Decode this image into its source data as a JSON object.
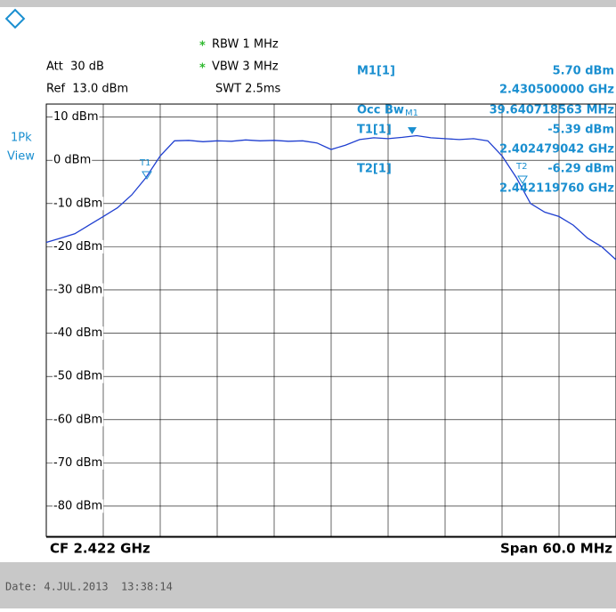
{
  "settings": {
    "rbw": "RBW 1 MHz",
    "vbw": "VBW 3 MHz",
    "swt": "SWT 2.5ms",
    "att": "Att  30 dB",
    "ref": "Ref  13.0 dBm",
    "star": "*"
  },
  "view": {
    "mode": "1Pk",
    "state": "View"
  },
  "markers": {
    "m1": {
      "name": "M1[1]",
      "level": "5.70 dBm",
      "freq": "2.430500000 GHz"
    },
    "occ": {
      "name": "Occ Bw",
      "value": "39.640718563 MHz"
    },
    "t1": {
      "name": "T1[1]",
      "level": "-5.39 dBm",
      "freq": "2.402479042 GHz"
    },
    "t2": {
      "name": "T2[1]",
      "level": "-6.29 dBm",
      "freq": "2.442119760 GHz"
    },
    "tags": [
      "M1",
      "T1",
      "T2"
    ]
  },
  "y_labels": [
    "10 dBm",
    "0 dBm",
    "-10 dBm",
    "-20 dBm",
    "-30 dBm",
    "-40 dBm",
    "-50 dBm",
    "-60 dBm",
    "-70 dBm",
    "-80 dBm"
  ],
  "trace": {
    "values": [
      -19,
      -18,
      -17,
      -15,
      -13,
      -11,
      -8,
      -4,
      1,
      4.5,
      4.6,
      4.3,
      4.5,
      4.4,
      4.7,
      4.5,
      4.6,
      4.4,
      4.5,
      4.0,
      2.5,
      3.5,
      4.8,
      5.2,
      5.0,
      5.3,
      5.7,
      5.2,
      5.0,
      4.8,
      5.0,
      4.5,
      1,
      -4,
      -10,
      -12,
      -13,
      -15,
      -18,
      -20,
      -23
    ]
  },
  "footer": {
    "cf": "CF 2.422 GHz",
    "span": "Span 60.0 MHz",
    "date": "Date: 4.JUL.2013  13:38:14"
  }
}
